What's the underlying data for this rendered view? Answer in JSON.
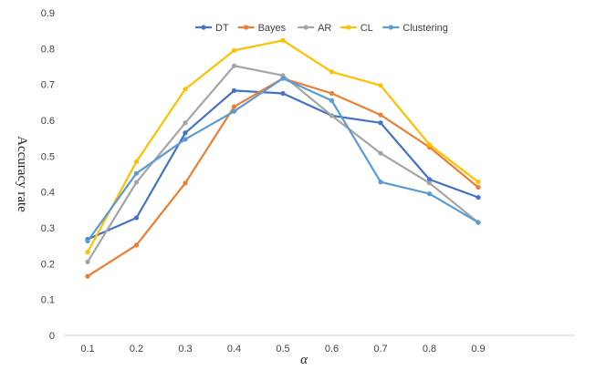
{
  "chart_data": {
    "type": "line",
    "title": "",
    "xlabel": "α",
    "ylabel": "Accuracy rate",
    "x": [
      0.1,
      0.2,
      0.3,
      0.4,
      0.5,
      0.6,
      0.7,
      0.8,
      0.9
    ],
    "x_tick_labels": [
      "0.1",
      "0.2",
      "0.3",
      "0.4",
      "0.5",
      "0.6",
      "0.7",
      "0.8",
      "0.9"
    ],
    "ylim": [
      0,
      0.9
    ],
    "y_tick_labels": [
      "0",
      "0.1",
      "0.2",
      "0.3",
      "0.4",
      "0.5",
      "0.6",
      "0.7",
      "0.8",
      "0.9"
    ],
    "grid": false,
    "legend_position": "top-center",
    "series": [
      {
        "name": "DT",
        "color": "#4472C4",
        "values": [
          0.268,
          0.328,
          0.565,
          0.683,
          0.675,
          0.613,
          0.593,
          0.435,
          0.385
        ]
      },
      {
        "name": "Bayes",
        "color": "#ED7D31",
        "values": [
          0.165,
          0.252,
          0.425,
          0.638,
          0.717,
          0.675,
          0.615,
          0.525,
          0.413
        ]
      },
      {
        "name": "AR",
        "color": "#A5A5A5",
        "values": [
          0.205,
          0.427,
          0.593,
          0.752,
          0.725,
          0.613,
          0.508,
          0.425,
          0.315
        ]
      },
      {
        "name": "CL",
        "color": "#FFC000",
        "values": [
          0.232,
          0.485,
          0.687,
          0.795,
          0.823,
          0.735,
          0.697,
          0.532,
          0.428
        ]
      },
      {
        "name": "Clustering",
        "color": "#5B9BD5",
        "values": [
          0.263,
          0.452,
          0.547,
          0.625,
          0.717,
          0.655,
          0.428,
          0.395,
          0.315
        ]
      }
    ]
  }
}
